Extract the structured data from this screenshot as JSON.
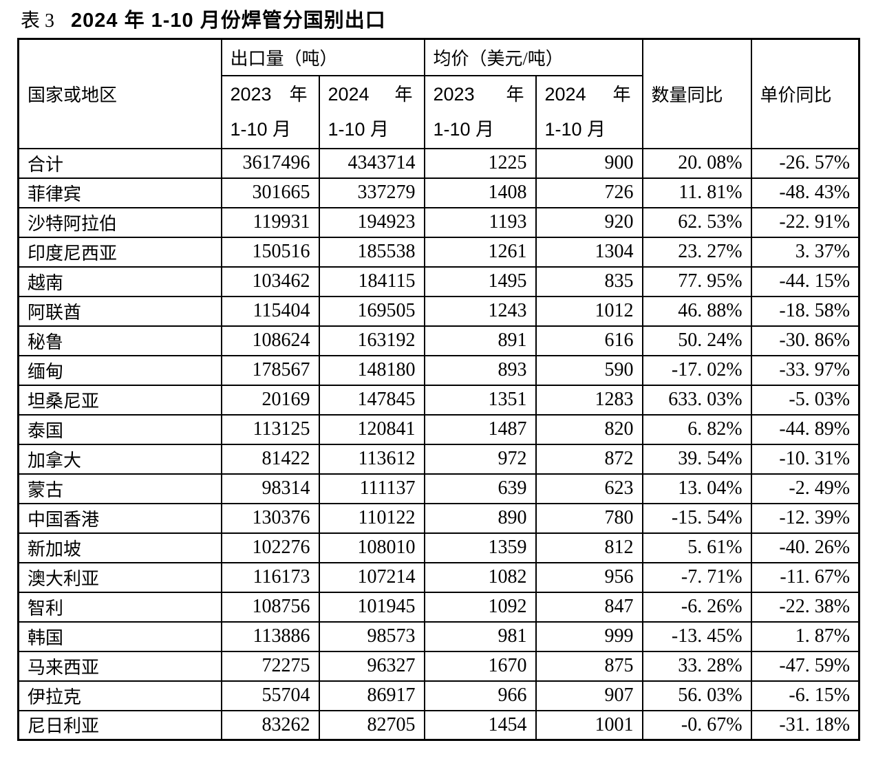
{
  "title": {
    "prefix": "表 3",
    "main": "2024 年 1-10 月份焊管分国别出口"
  },
  "table": {
    "header": {
      "country": "国家或地区",
      "export_volume_group": "出口量（吨）",
      "avg_price_group": "均价（美元/吨）",
      "qty_yoy": "数量同比",
      "price_yoy": "单价同比",
      "subcols": [
        {
          "year": "2023",
          "year_suffix": "年",
          "period": "1-10 月"
        },
        {
          "year": "2024",
          "year_suffix": "年",
          "period": "1-10 月"
        },
        {
          "year": "2023",
          "year_suffix": "年",
          "period": "1-10 月"
        },
        {
          "year": "2024",
          "year_suffix": "年",
          "period": "1-10 月"
        }
      ]
    },
    "rows": [
      {
        "country": "合计",
        "qty_2023": "3617496",
        "qty_2024": "4343714",
        "price_2023": "1225",
        "price_2024": "900",
        "qty_yoy": "20. 08%",
        "price_yoy": "-26. 57%"
      },
      {
        "country": "菲律宾",
        "qty_2023": "301665",
        "qty_2024": "337279",
        "price_2023": "1408",
        "price_2024": "726",
        "qty_yoy": "11. 81%",
        "price_yoy": "-48. 43%"
      },
      {
        "country": "沙特阿拉伯",
        "qty_2023": "119931",
        "qty_2024": "194923",
        "price_2023": "1193",
        "price_2024": "920",
        "qty_yoy": "62. 53%",
        "price_yoy": "-22. 91%"
      },
      {
        "country": "印度尼西亚",
        "qty_2023": "150516",
        "qty_2024": "185538",
        "price_2023": "1261",
        "price_2024": "1304",
        "qty_yoy": "23. 27%",
        "price_yoy": "3. 37%"
      },
      {
        "country": "越南",
        "qty_2023": "103462",
        "qty_2024": "184115",
        "price_2023": "1495",
        "price_2024": "835",
        "qty_yoy": "77. 95%",
        "price_yoy": "-44. 15%"
      },
      {
        "country": "阿联酋",
        "qty_2023": "115404",
        "qty_2024": "169505",
        "price_2023": "1243",
        "price_2024": "1012",
        "qty_yoy": "46. 88%",
        "price_yoy": "-18. 58%"
      },
      {
        "country": "秘鲁",
        "qty_2023": "108624",
        "qty_2024": "163192",
        "price_2023": "891",
        "price_2024": "616",
        "qty_yoy": "50. 24%",
        "price_yoy": "-30. 86%"
      },
      {
        "country": "缅甸",
        "qty_2023": "178567",
        "qty_2024": "148180",
        "price_2023": "893",
        "price_2024": "590",
        "qty_yoy": "-17. 02%",
        "price_yoy": "-33. 97%"
      },
      {
        "country": "坦桑尼亚",
        "qty_2023": "20169",
        "qty_2024": "147845",
        "price_2023": "1351",
        "price_2024": "1283",
        "qty_yoy": "633. 03%",
        "price_yoy": "-5. 03%"
      },
      {
        "country": "泰国",
        "qty_2023": "113125",
        "qty_2024": "120841",
        "price_2023": "1487",
        "price_2024": "820",
        "qty_yoy": "6. 82%",
        "price_yoy": "-44. 89%"
      },
      {
        "country": "加拿大",
        "qty_2023": "81422",
        "qty_2024": "113612",
        "price_2023": "972",
        "price_2024": "872",
        "qty_yoy": "39. 54%",
        "price_yoy": "-10. 31%"
      },
      {
        "country": "蒙古",
        "qty_2023": "98314",
        "qty_2024": "111137",
        "price_2023": "639",
        "price_2024": "623",
        "qty_yoy": "13. 04%",
        "price_yoy": "-2. 49%"
      },
      {
        "country": "中国香港",
        "qty_2023": "130376",
        "qty_2024": "110122",
        "price_2023": "890",
        "price_2024": "780",
        "qty_yoy": "-15. 54%",
        "price_yoy": "-12. 39%"
      },
      {
        "country": "新加坡",
        "qty_2023": "102276",
        "qty_2024": "108010",
        "price_2023": "1359",
        "price_2024": "812",
        "qty_yoy": "5. 61%",
        "price_yoy": "-40. 26%"
      },
      {
        "country": "澳大利亚",
        "qty_2023": "116173",
        "qty_2024": "107214",
        "price_2023": "1082",
        "price_2024": "956",
        "qty_yoy": "-7. 71%",
        "price_yoy": "-11. 67%"
      },
      {
        "country": "智利",
        "qty_2023": "108756",
        "qty_2024": "101945",
        "price_2023": "1092",
        "price_2024": "847",
        "qty_yoy": "-6. 26%",
        "price_yoy": "-22. 38%"
      },
      {
        "country": "韩国",
        "qty_2023": "113886",
        "qty_2024": "98573",
        "price_2023": "981",
        "price_2024": "999",
        "qty_yoy": "-13. 45%",
        "price_yoy": "1. 87%"
      },
      {
        "country": "马来西亚",
        "qty_2023": "72275",
        "qty_2024": "96327",
        "price_2023": "1670",
        "price_2024": "875",
        "qty_yoy": "33. 28%",
        "price_yoy": "-47. 59%"
      },
      {
        "country": "伊拉克",
        "qty_2023": "55704",
        "qty_2024": "86917",
        "price_2023": "966",
        "price_2024": "907",
        "qty_yoy": "56. 03%",
        "price_yoy": "-6. 15%"
      },
      {
        "country": "尼日利亚",
        "qty_2023": "83262",
        "qty_2024": "82705",
        "price_2023": "1454",
        "price_2024": "1001",
        "qty_yoy": "-0. 67%",
        "price_yoy": "-31. 18%"
      }
    ]
  }
}
